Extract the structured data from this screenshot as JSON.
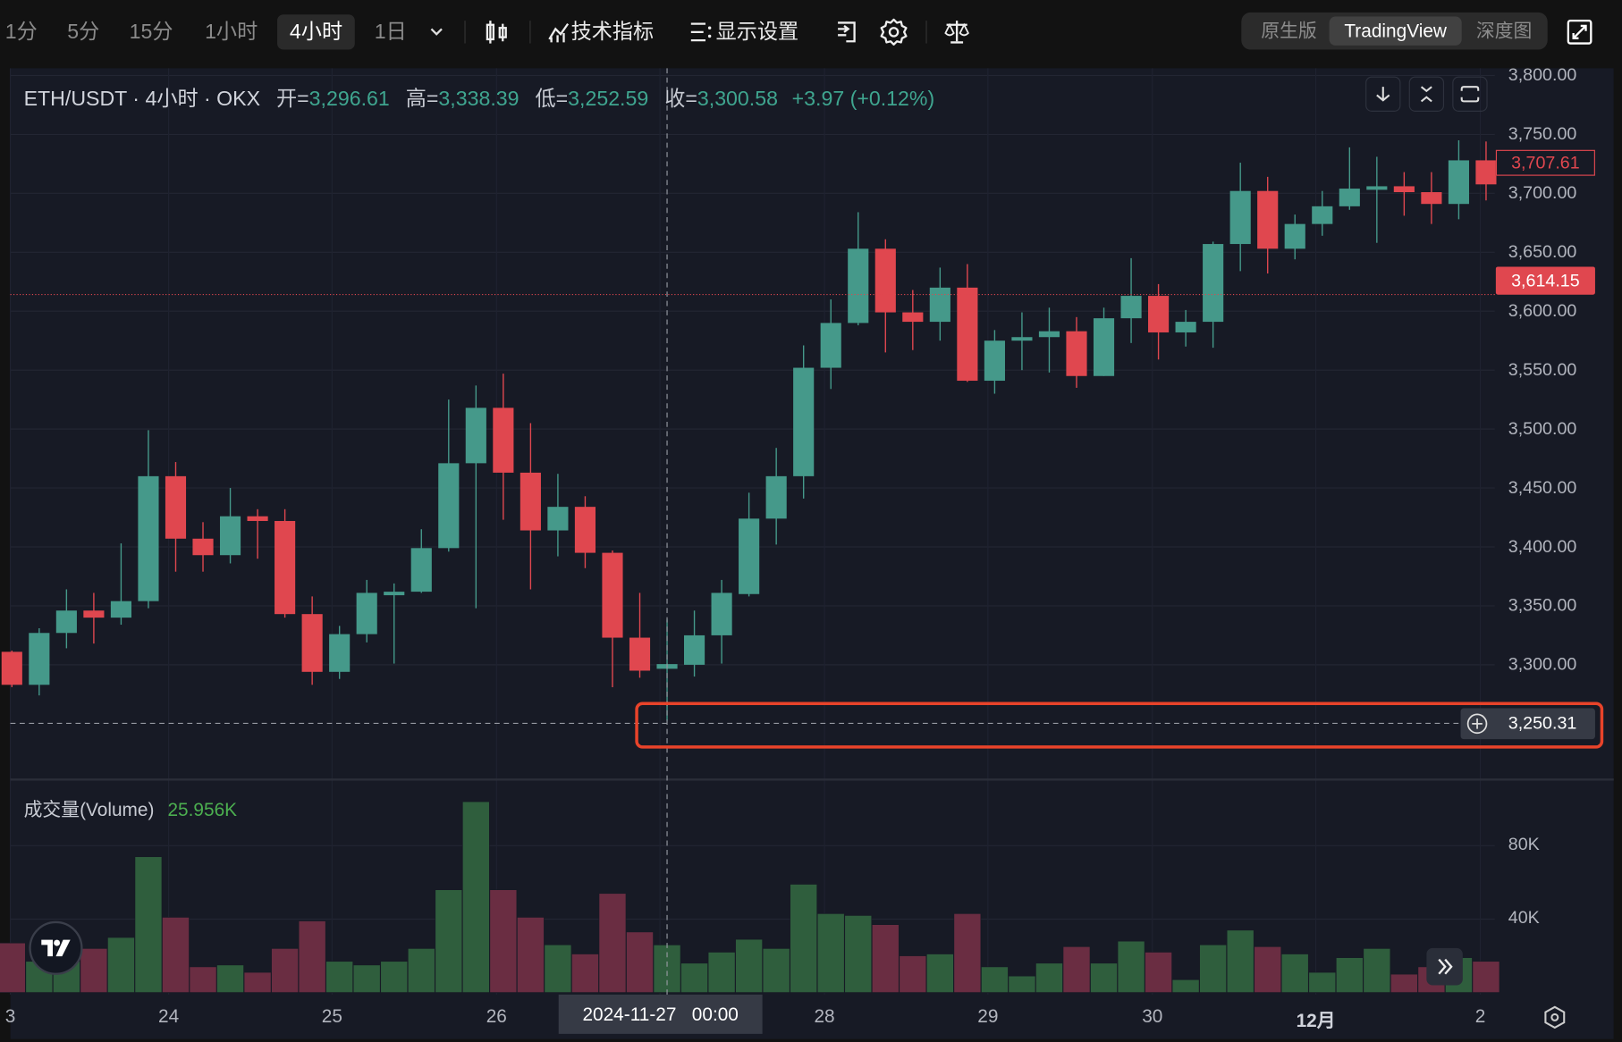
{
  "toolbar": {
    "intervals": [
      "1分",
      "5分",
      "15分",
      "1小时",
      "4小时",
      "1日"
    ],
    "active_interval": "4小时",
    "indicators_label": "技术指标",
    "display_settings_label": "显示设置",
    "view_modes": [
      "原生版",
      "TradingView",
      "深度图"
    ],
    "active_view_mode": "TradingView"
  },
  "legend": {
    "symbol": "ETH/USDT · 4小时 · OKX",
    "open_label": "开=",
    "open": "3,296.61",
    "high_label": "高=",
    "high": "3,338.39",
    "low_label": "低=",
    "low": "3,252.59",
    "close_label": "收=",
    "close": "3,300.58",
    "change": "+3.97 (+0.12%)"
  },
  "volume_legend": {
    "label": "成交量(Volume)",
    "value": "25.956K"
  },
  "price_axis": [
    "3,800.00",
    "3,750.00",
    "3,700.00",
    "3,650.00",
    "3,600.00",
    "3,550.00",
    "3,500.00",
    "3,450.00",
    "3,400.00",
    "3,350.00",
    "3,300.00"
  ],
  "volume_axis": [
    "80K",
    "40K"
  ],
  "price_tags": {
    "last_price": "3,707.61",
    "marker_price": "3,614.15",
    "crosshair_price": "3,250.31"
  },
  "time_axis": [
    "3",
    "24",
    "25",
    "26",
    "28",
    "29",
    "30",
    "12月",
    "2"
  ],
  "crosshair_time": "2024-11-27   00:00",
  "colors": {
    "up": "#45998a",
    "down": "#e0474f",
    "vol_up": "#2f5e3d",
    "vol_down": "#6a2d42",
    "highlight": "#e8432a"
  },
  "chart_data": {
    "type": "candlestick",
    "interval": "4小时",
    "ylim": [
      3220,
      3820
    ],
    "volume_unit": "K",
    "candles": [
      [
        3311,
        3312,
        3281,
        3283,
        27
      ],
      [
        3283,
        3331,
        3274,
        3327,
        17
      ],
      [
        3327,
        3364,
        3314,
        3346,
        17
      ],
      [
        3346,
        3361,
        3318,
        3340,
        24
      ],
      [
        3340,
        3403,
        3334,
        3354,
        30
      ],
      [
        3354,
        3499,
        3348,
        3460,
        74
      ],
      [
        3460,
        3472,
        3379,
        3407,
        41
      ],
      [
        3407,
        3421,
        3379,
        3393,
        14
      ],
      [
        3393,
        3450,
        3386,
        3426,
        15
      ],
      [
        3426,
        3432,
        3390,
        3422,
        11
      ],
      [
        3422,
        3432,
        3340,
        3343,
        24
      ],
      [
        3343,
        3358,
        3283,
        3294,
        39
      ],
      [
        3294,
        3333,
        3288,
        3326,
        17
      ],
      [
        3326,
        3372,
        3319,
        3361,
        15
      ],
      [
        3359,
        3369,
        3301,
        3362,
        17
      ],
      [
        3362,
        3415,
        3361,
        3399,
        24
      ],
      [
        3399,
        3525,
        3396,
        3471,
        56
      ],
      [
        3471,
        3537,
        3348,
        3518,
        104
      ],
      [
        3518,
        3547,
        3423,
        3463,
        56
      ],
      [
        3463,
        3505,
        3364,
        3414,
        41
      ],
      [
        3414,
        3462,
        3392,
        3434,
        26
      ],
      [
        3434,
        3443,
        3382,
        3395,
        21
      ],
      [
        3395,
        3397,
        3281,
        3323,
        54
      ],
      [
        3323,
        3361,
        3289,
        3295,
        33
      ],
      [
        3296.61,
        3338.39,
        3252.59,
        3300.58,
        25.956
      ],
      [
        3300,
        3346,
        3290,
        3325,
        16
      ],
      [
        3325,
        3372,
        3301,
        3361,
        22
      ],
      [
        3360,
        3446,
        3358,
        3424,
        29
      ],
      [
        3424,
        3484,
        3402,
        3460,
        24
      ],
      [
        3460,
        3571,
        3441,
        3552,
        59
      ],
      [
        3552,
        3610,
        3534,
        3590,
        43
      ],
      [
        3590,
        3684,
        3588,
        3653,
        42
      ],
      [
        3653,
        3661,
        3565,
        3599,
        37
      ],
      [
        3599,
        3618,
        3567,
        3591,
        20
      ],
      [
        3591,
        3637,
        3575,
        3620,
        21
      ],
      [
        3620,
        3640,
        3540,
        3541,
        43
      ],
      [
        3541,
        3584,
        3530,
        3575,
        14
      ],
      [
        3575,
        3599,
        3550,
        3578,
        9
      ],
      [
        3578,
        3603,
        3548,
        3583,
        16
      ],
      [
        3583,
        3595,
        3535,
        3545,
        25
      ],
      [
        3545,
        3603,
        3545,
        3594,
        16
      ],
      [
        3594,
        3645,
        3573,
        3613,
        28
      ],
      [
        3613,
        3623,
        3559,
        3582,
        22
      ],
      [
        3582,
        3601,
        3570,
        3591,
        7
      ],
      [
        3591,
        3659,
        3569,
        3657,
        26
      ],
      [
        3657,
        3726,
        3634,
        3702,
        34
      ],
      [
        3702,
        3714,
        3632,
        3653,
        25
      ],
      [
        3653,
        3682,
        3644,
        3674,
        21
      ],
      [
        3674,
        3702,
        3664,
        3689,
        11
      ],
      [
        3689,
        3739,
        3686,
        3704,
        19
      ],
      [
        3703,
        3731,
        3658,
        3706,
        24
      ],
      [
        3706,
        3718,
        3681,
        3701,
        10
      ],
      [
        3701,
        3718,
        3674,
        3691,
        14
      ],
      [
        3691,
        3745,
        3678,
        3728,
        19
      ],
      [
        3728,
        3744,
        3694,
        3707.61,
        17
      ]
    ],
    "candle_fields": [
      "open",
      "high",
      "low",
      "close",
      "volume"
    ],
    "crosshair_index": 24,
    "crosshair_price": 3250.31,
    "marker_line_price": 3614.15
  }
}
